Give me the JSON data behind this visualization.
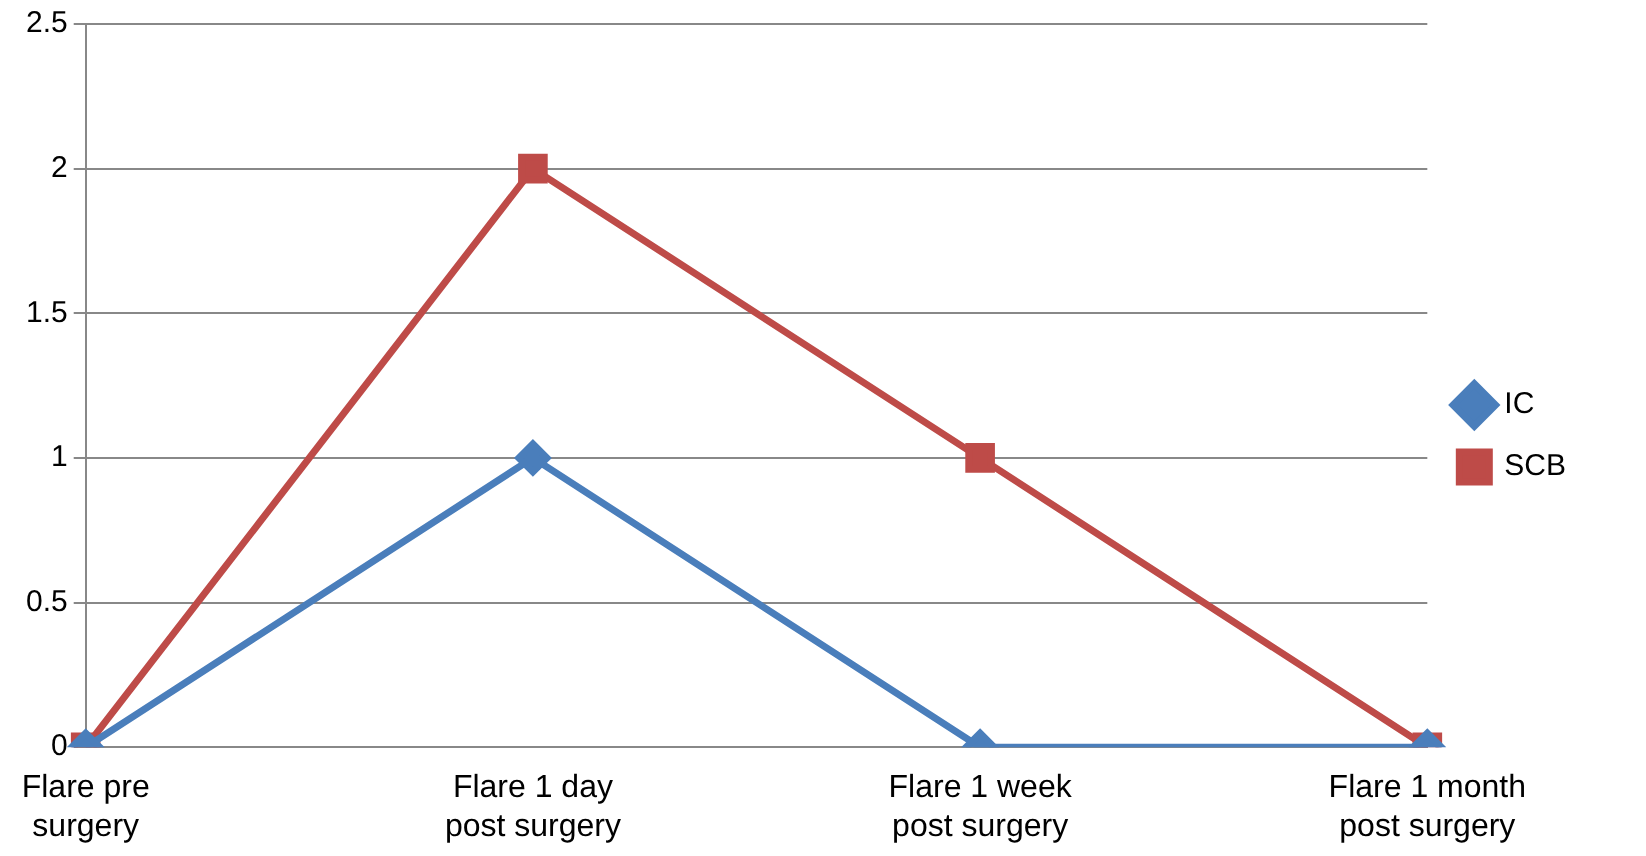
{
  "chart_data": {
    "type": "line",
    "categories": [
      "Flare pre surgery",
      "Flare 1 day post surgery",
      "Flare 1 week post surgery",
      "Flare 1 month post surgery"
    ],
    "series": [
      {
        "name": "IC",
        "color": "#4a7ebb",
        "values": [
          0,
          1,
          0,
          0
        ],
        "marker": "diamond"
      },
      {
        "name": "SCB",
        "color": "#be4b48",
        "values": [
          0,
          2,
          1,
          0
        ],
        "marker": "square"
      }
    ],
    "ylim": [
      0,
      2.5
    ],
    "yticks": [
      0,
      0.5,
      1,
      1.5,
      2,
      2.5
    ],
    "grid": "y",
    "legend": "right",
    "line_style": "solid"
  }
}
